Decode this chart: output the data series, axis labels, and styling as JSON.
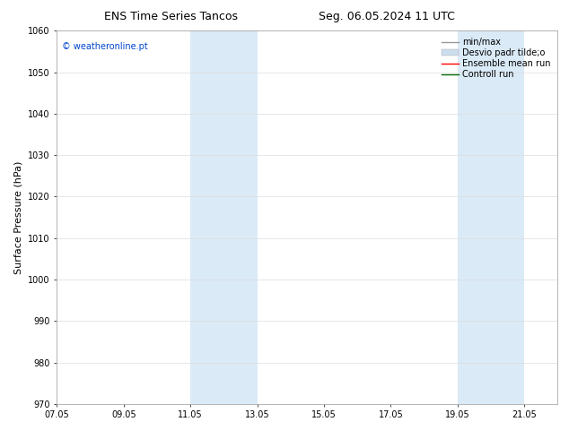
{
  "title_left": "ENS Time Series Tancos",
  "title_right": "Seg. 06.05.2024 11 UTC",
  "ylabel": "Surface Pressure (hPa)",
  "ylim": [
    970,
    1060
  ],
  "yticks": [
    970,
    980,
    990,
    1000,
    1010,
    1020,
    1030,
    1040,
    1050,
    1060
  ],
  "xtick_labels": [
    "07.05",
    "09.05",
    "11.05",
    "13.05",
    "15.05",
    "17.05",
    "19.05",
    "21.05"
  ],
  "xtick_positions": [
    0,
    2,
    4,
    6,
    8,
    10,
    12,
    14
  ],
  "x_min": 0,
  "x_max": 15,
  "shaded_regions": [
    {
      "start": 4,
      "end": 6,
      "color": "#daeaf7"
    },
    {
      "start": 12,
      "end": 14,
      "color": "#daeaf7"
    }
  ],
  "watermark_text": "© weatheronline.pt",
  "watermark_color": "#0044cc",
  "legend_items": [
    {
      "label": "min/max",
      "color": "#999999",
      "lw": 1.0,
      "style": "solid",
      "type": "line"
    },
    {
      "label": "Desvio padr tilde;o",
      "color": "#ccddee",
      "lw": 5,
      "style": "solid",
      "type": "patch"
    },
    {
      "label": "Ensemble mean run",
      "color": "#ff0000",
      "lw": 1.0,
      "style": "solid",
      "type": "line"
    },
    {
      "label": "Controll run",
      "color": "#006600",
      "lw": 1.0,
      "style": "solid",
      "type": "line"
    }
  ],
  "bg_color": "#ffffff",
  "grid_color": "#dddddd",
  "title_fontsize": 9,
  "label_fontsize": 8,
  "tick_fontsize": 7,
  "watermark_fontsize": 7,
  "legend_fontsize": 7
}
